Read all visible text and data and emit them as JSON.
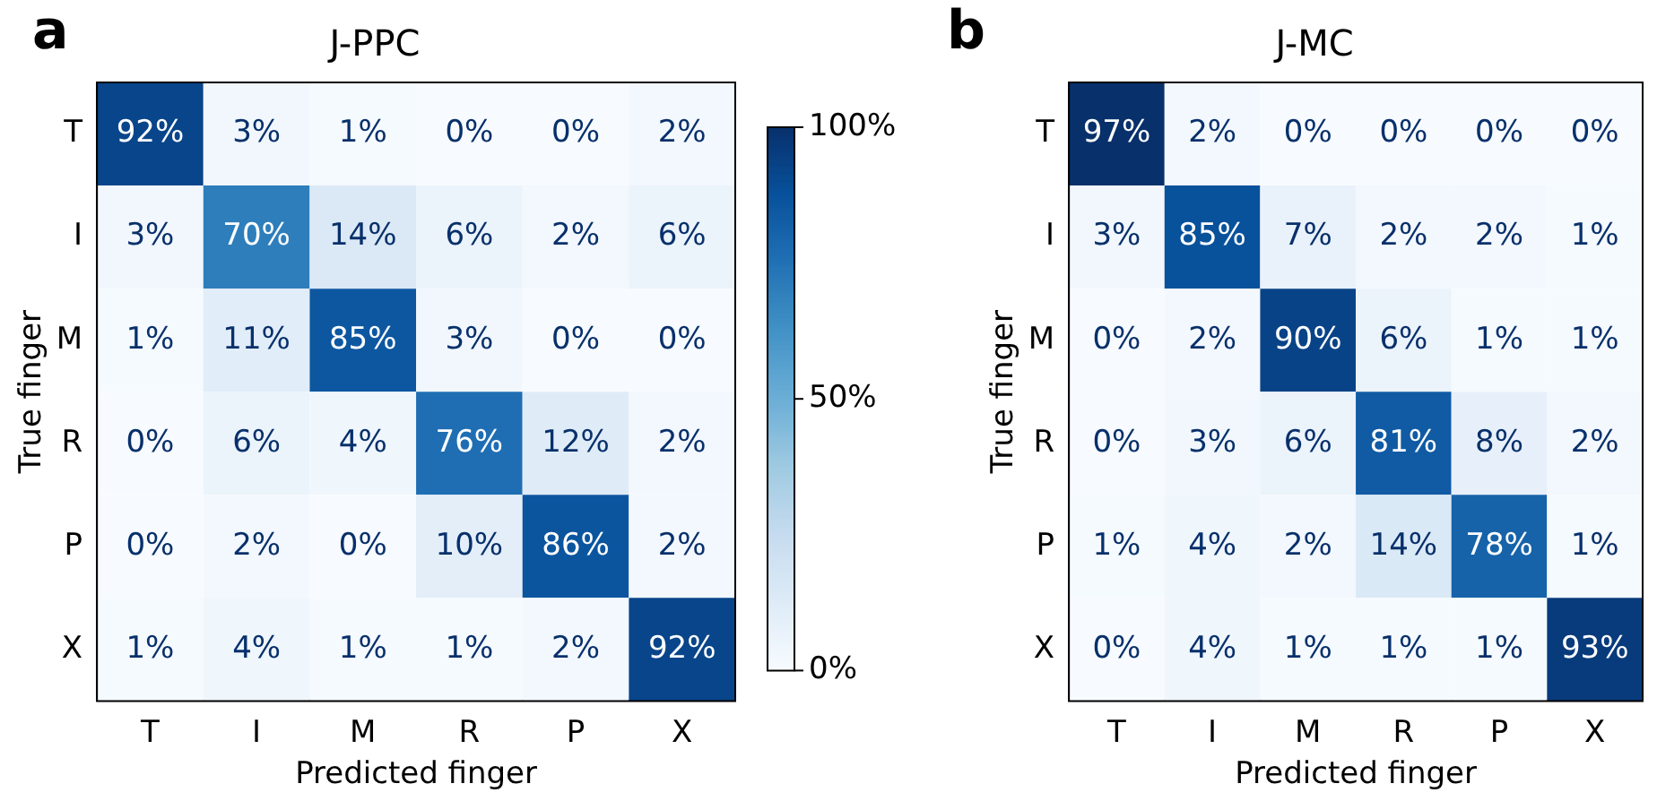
{
  "chart_data": [
    {
      "type": "heatmap",
      "title": "J-PPC",
      "xlabel": "Predicted finger",
      "ylabel": "True finger",
      "annotations": [
        "a"
      ],
      "categories": [
        "T",
        "I",
        "M",
        "R",
        "P",
        "X"
      ],
      "y_categories": [
        "T",
        "I",
        "M",
        "R",
        "P",
        "X"
      ],
      "cells": [
        [
          92,
          3,
          1,
          0,
          0,
          2
        ],
        [
          3,
          70,
          14,
          6,
          2,
          6
        ],
        [
          1,
          11,
          85,
          3,
          0,
          0
        ],
        [
          0,
          6,
          4,
          76,
          12,
          2
        ],
        [
          0,
          2,
          0,
          10,
          86,
          2
        ],
        [
          1,
          4,
          1,
          1,
          2,
          92
        ]
      ],
      "cell_labels": [
        [
          "92%",
          "3%",
          "1%",
          "0%",
          "0%",
          "2%"
        ],
        [
          "3%",
          "70%",
          "14%",
          "6%",
          "2%",
          "6%"
        ],
        [
          "1%",
          "11%",
          "85%",
          "3%",
          "0%",
          "0%"
        ],
        [
          "0%",
          "6%",
          "4%",
          "76%",
          "12%",
          "2%"
        ],
        [
          "0%",
          "2%",
          "0%",
          "10%",
          "86%",
          "2%"
        ],
        [
          "1%",
          "4%",
          "1%",
          "1%",
          "2%",
          "92%"
        ]
      ],
      "clim": [
        0,
        100
      ],
      "cticks": [
        {
          "value": 0,
          "label": "0%"
        },
        {
          "value": 50,
          "label": "50%"
        },
        {
          "value": 100,
          "label": "100%"
        }
      ]
    },
    {
      "type": "heatmap",
      "title": "J-MC",
      "xlabel": "Predicted finger",
      "ylabel": "True finger",
      "annotations": [
        "b"
      ],
      "categories": [
        "T",
        "I",
        "M",
        "R",
        "P",
        "X"
      ],
      "y_categories": [
        "T",
        "I",
        "M",
        "R",
        "P",
        "X"
      ],
      "cells": [
        [
          97,
          2,
          0,
          0,
          0,
          0
        ],
        [
          3,
          85,
          7,
          2,
          2,
          1
        ],
        [
          0,
          2,
          90,
          6,
          1,
          1
        ],
        [
          0,
          3,
          6,
          81,
          8,
          2
        ],
        [
          1,
          4,
          2,
          14,
          78,
          1
        ],
        [
          0,
          4,
          1,
          1,
          1,
          93
        ]
      ],
      "cell_labels": [
        [
          "97%",
          "2%",
          "0%",
          "0%",
          "0%",
          "0%"
        ],
        [
          "3%",
          "85%",
          "7%",
          "2%",
          "2%",
          "1%"
        ],
        [
          "0%",
          "2%",
          "90%",
          "6%",
          "1%",
          "1%"
        ],
        [
          "0%",
          "3%",
          "6%",
          "81%",
          "8%",
          "2%"
        ],
        [
          "1%",
          "4%",
          "2%",
          "14%",
          "78%",
          "1%"
        ],
        [
          "0%",
          "4%",
          "1%",
          "1%",
          "1%",
          "93%"
        ]
      ]
    }
  ]
}
